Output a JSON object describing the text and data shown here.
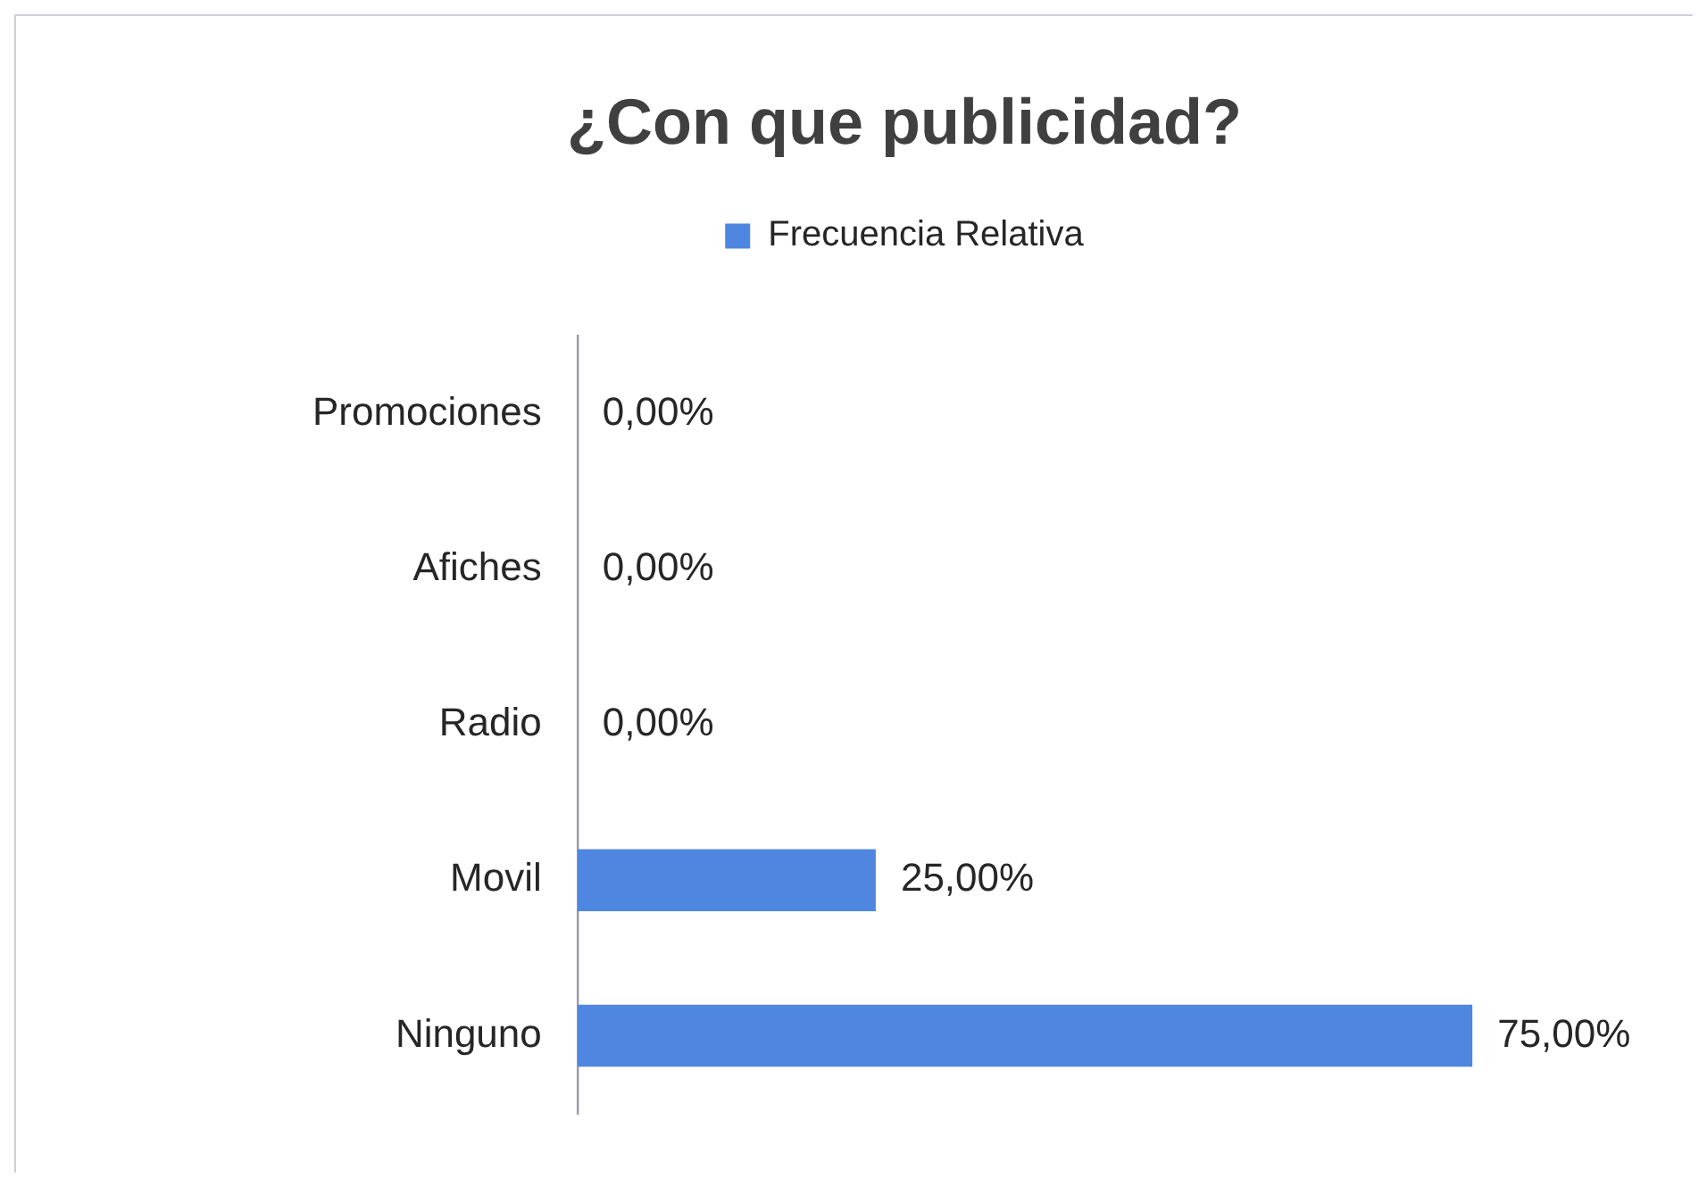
{
  "chart_data": {
    "type": "bar",
    "orientation": "horizontal",
    "title": "¿Con que publicidad?",
    "categories": [
      "Promociones",
      "Afiches",
      "Radio",
      "Movil",
      "Ninguno"
    ],
    "series": [
      {
        "name": "Frecuencia Relativa",
        "color": "#4f87e0",
        "values": [
          0,
          0,
          0,
          25,
          75
        ],
        "value_labels": [
          "0,00%",
          "0,00%",
          "0,00%",
          "25,00%",
          "75,00%"
        ]
      }
    ],
    "tick_labels": "y",
    "legend": "top",
    "grid": false
  }
}
